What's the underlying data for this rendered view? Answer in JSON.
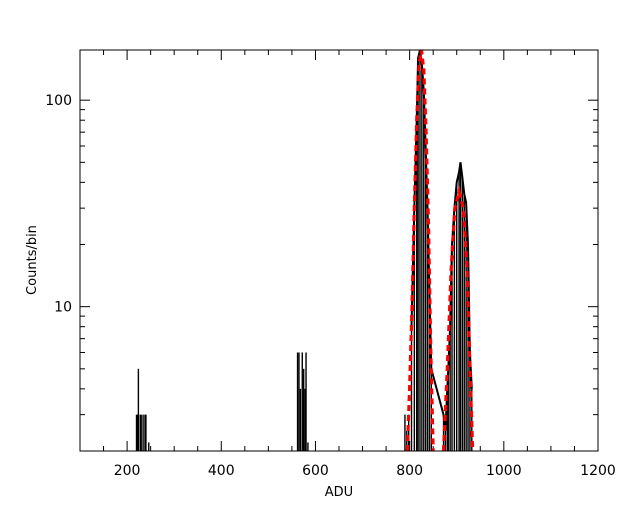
{
  "chart_data": {
    "type": "line",
    "xlabel": "ADU",
    "ylabel": "Counts/bin",
    "xlim": [
      100,
      1200
    ],
    "ylim": [
      2,
      175
    ],
    "yscale": "log",
    "grid": false,
    "x_ticks": [
      200,
      400,
      600,
      800,
      1000,
      1200
    ],
    "x_tick_labels": [
      "200",
      "400",
      "600",
      "800",
      "1000",
      "1200"
    ],
    "y_ticks": [
      10,
      100
    ],
    "y_tick_labels": [
      "10",
      "100"
    ],
    "series": [
      {
        "style": "histogram",
        "color": "#000000",
        "points": [
          [
            220,
            3
          ],
          [
            222,
            3
          ],
          [
            224,
            5
          ],
          [
            228,
            3
          ],
          [
            230,
            3
          ],
          [
            234,
            3
          ],
          [
            238,
            3
          ],
          [
            240,
            3
          ],
          [
            246,
            2.2
          ],
          [
            562,
            6
          ],
          [
            565,
            6
          ],
          [
            568,
            4
          ],
          [
            572,
            6
          ],
          [
            575,
            5
          ],
          [
            578,
            4
          ],
          [
            580,
            6
          ],
          [
            584,
            2.2
          ],
          [
            790,
            3
          ],
          [
            794,
            2.5
          ],
          [
            798,
            3
          ],
          [
            804,
            8
          ],
          [
            810,
            30
          ],
          [
            815,
            80
          ],
          [
            818,
            160
          ],
          [
            822,
            175
          ],
          [
            826,
            150
          ],
          [
            830,
            110
          ],
          [
            834,
            60
          ],
          [
            838,
            30
          ],
          [
            842,
            12
          ],
          [
            846,
            5
          ],
          [
            872,
            3
          ],
          [
            876,
            2.5
          ],
          [
            880,
            4
          ],
          [
            882,
            5
          ],
          [
            886,
            8
          ],
          [
            890,
            20
          ],
          [
            895,
            30
          ],
          [
            900,
            40
          ],
          [
            905,
            45
          ],
          [
            908,
            50
          ],
          [
            912,
            42
          ],
          [
            916,
            35
          ],
          [
            920,
            32
          ],
          [
            924,
            20
          ],
          [
            928,
            6
          ],
          [
            932,
            4
          ]
        ]
      },
      {
        "style": "dashed",
        "color": "#ff0000",
        "points": [
          [
            795,
            2.0
          ],
          [
            800,
            4.0
          ],
          [
            805,
            10
          ],
          [
            810,
            30
          ],
          [
            815,
            80
          ],
          [
            820,
            150
          ],
          [
            825,
            175
          ],
          [
            830,
            140
          ],
          [
            835,
            70
          ],
          [
            840,
            25
          ],
          [
            845,
            6
          ],
          [
            850,
            2.0
          ]
        ]
      },
      {
        "style": "dashed",
        "color": "#ff0000",
        "points": [
          [
            872,
            2.0
          ],
          [
            880,
            5
          ],
          [
            888,
            15
          ],
          [
            896,
            30
          ],
          [
            905,
            36
          ],
          [
            914,
            30
          ],
          [
            922,
            15
          ],
          [
            928,
            5
          ],
          [
            934,
            2.0
          ]
        ]
      }
    ]
  }
}
